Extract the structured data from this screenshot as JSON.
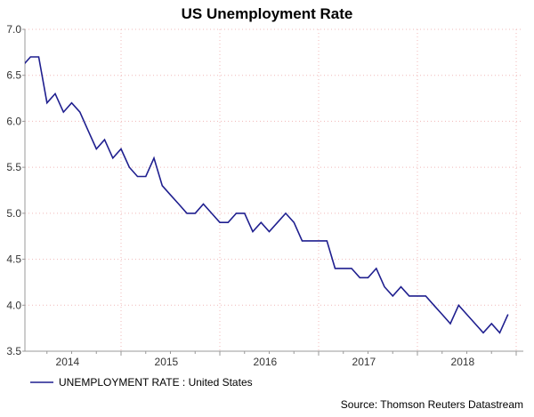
{
  "chart_data": {
    "type": "line",
    "title": "US Unemployment Rate",
    "xlabel": "",
    "ylabel": "",
    "ylim": [
      3.5,
      7.0
    ],
    "yticks": [
      "3.5",
      "4.0",
      "4.5",
      "5.0",
      "5.5",
      "6.0",
      "6.5",
      "7.0"
    ],
    "xticks": [
      "2014",
      "2015",
      "2016",
      "2017",
      "2018"
    ],
    "start": "2014-01",
    "frequency": "monthly",
    "grid": true,
    "legend_position": "bottom-left",
    "series": [
      {
        "name": "UNEMPLOYMENT RATE : United States",
        "color": "#1f1f8f",
        "values": [
          6.6,
          6.7,
          6.7,
          6.2,
          6.3,
          6.1,
          6.2,
          6.1,
          5.9,
          5.7,
          5.8,
          5.6,
          5.7,
          5.5,
          5.4,
          5.4,
          5.6,
          5.3,
          5.2,
          5.1,
          5.0,
          5.0,
          5.1,
          5.0,
          4.9,
          4.9,
          5.0,
          5.0,
          4.8,
          4.9,
          4.8,
          4.9,
          5.0,
          4.9,
          4.7,
          4.7,
          4.7,
          4.7,
          4.4,
          4.4,
          4.4,
          4.3,
          4.3,
          4.4,
          4.2,
          4.1,
          4.2,
          4.1,
          4.1,
          4.1,
          4.0,
          3.9,
          3.8,
          4.0,
          3.9,
          3.8,
          3.7,
          3.8,
          3.7,
          3.9
        ]
      }
    ],
    "source": "Source: Thomson Reuters Datastream"
  }
}
